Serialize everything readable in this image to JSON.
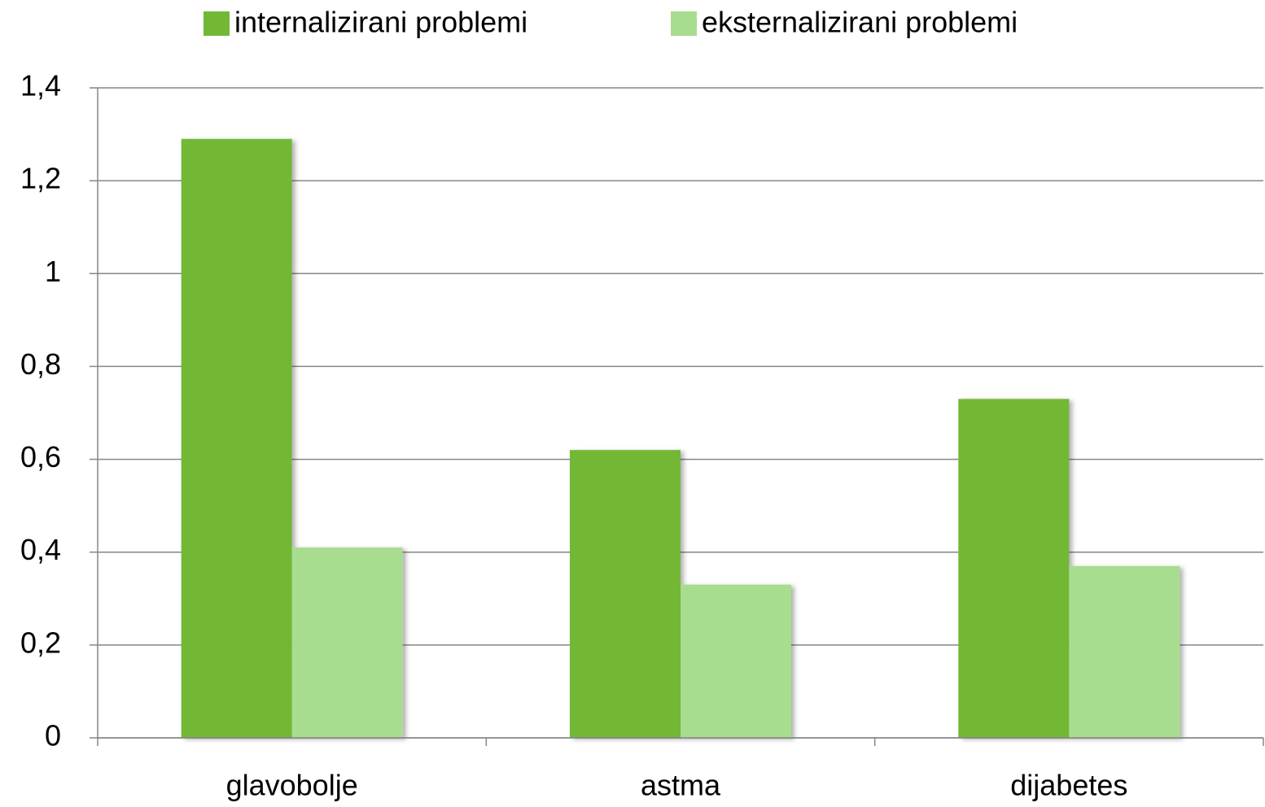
{
  "chart_data": {
    "type": "bar",
    "categories": [
      "glavobolje",
      "astma",
      "dijabetes"
    ],
    "series": [
      {
        "name": "internalizirani problemi",
        "color": "#72b836",
        "values": [
          1.29,
          0.62,
          0.73
        ]
      },
      {
        "name": "eksternalizirani problemi",
        "color": "#a8dc8f",
        "values": [
          0.41,
          0.33,
          0.37
        ]
      }
    ],
    "ylim": [
      0,
      1.4
    ],
    "yticks": [
      0,
      {
        "value": 0.2,
        "label": "0,2"
      },
      {
        "value": 0.4,
        "label": "0,4"
      },
      {
        "value": 0.6,
        "label": "0,6"
      },
      {
        "value": 0.8,
        "label": "0,8"
      },
      1,
      {
        "value": 1.2,
        "label": "1,2"
      },
      {
        "value": 1.4,
        "label": "1,4"
      }
    ],
    "grid": true,
    "legend": "top"
  }
}
